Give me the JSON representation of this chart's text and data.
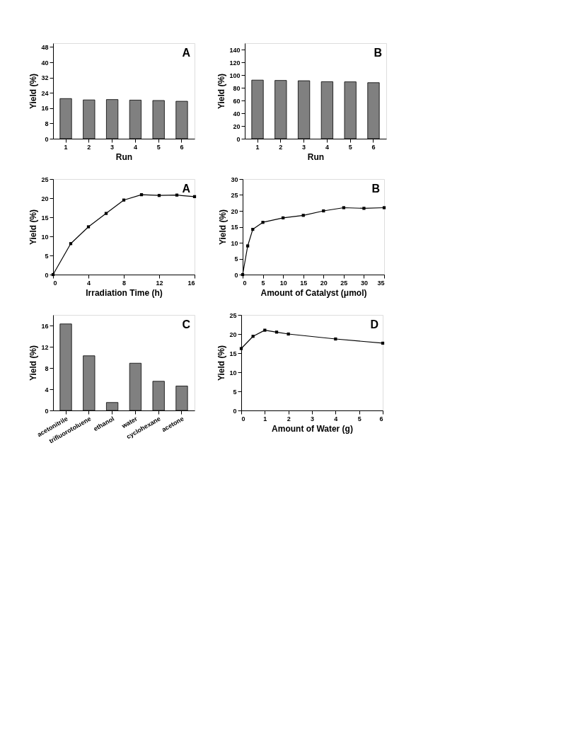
{
  "chart_data": [
    {
      "type": "bar",
      "categories": [
        "1",
        "2",
        "3",
        "4",
        "5",
        "6"
      ],
      "values": [
        21,
        20.3,
        20.5,
        20.2,
        20,
        19.6
      ],
      "color": "#808080",
      "xlabel": "Run",
      "ylabel": "Yield (%)",
      "ylim": [
        0,
        50
      ],
      "yticks": [
        0,
        8,
        16,
        24,
        32,
        40,
        48
      ],
      "grid": false,
      "annotations": [
        "A"
      ]
    },
    {
      "type": "bar",
      "categories": [
        "1",
        "2",
        "3",
        "4",
        "5",
        "6"
      ],
      "values": [
        92,
        91.5,
        91,
        89.5,
        89.3,
        88
      ],
      "color": "#808080",
      "xlabel": "Run",
      "ylabel": "Yield (%)",
      "ylim": [
        0,
        150
      ],
      "yticks": [
        0,
        20,
        40,
        60,
        80,
        100,
        120,
        140
      ],
      "grid": false,
      "annotations": [
        "B"
      ]
    },
    {
      "type": "line",
      "x": [
        0,
        2,
        4,
        6,
        8,
        10,
        12,
        14,
        16
      ],
      "values": [
        0,
        8.1,
        12.5,
        16,
        19.5,
        20.9,
        20.7,
        20.8,
        20.4
      ],
      "color": "#000000",
      "marker": "square",
      "xlabel": "Irradiation Time (h)",
      "ylabel": "Yield (%)",
      "xlim": [
        0,
        16
      ],
      "xticks": [
        0,
        4,
        8,
        12,
        16
      ],
      "ylim": [
        0,
        25
      ],
      "yticks": [
        0,
        5,
        10,
        15,
        20,
        25
      ],
      "grid": false,
      "annotations": [
        "A"
      ]
    },
    {
      "type": "line",
      "x": [
        0,
        1.25,
        2.5,
        5,
        10,
        15,
        20,
        25,
        30,
        35
      ],
      "values": [
        0,
        9,
        14.2,
        16.4,
        17.8,
        18.6,
        20,
        21,
        20.8,
        21
      ],
      "color": "#000000",
      "marker": "square",
      "xlabel": "Amount of Catalyst (μmol)",
      "ylabel": "Yield (%)",
      "xlim": [
        0,
        35
      ],
      "xticks": [
        0,
        5,
        10,
        15,
        20,
        25,
        30,
        35
      ],
      "ylim": [
        0,
        30
      ],
      "yticks": [
        0,
        5,
        10,
        15,
        20,
        25,
        30
      ],
      "grid": false,
      "annotations": [
        "B"
      ]
    },
    {
      "type": "bar",
      "categories": [
        "acetonitrile",
        "trifluorotoluene",
        "ethanol",
        "water",
        "cyclohexane",
        "acetone"
      ],
      "values": [
        16.3,
        10.3,
        1.5,
        8.9,
        5.5,
        4.6
      ],
      "color": "#808080",
      "ylabel": "Yield (%)",
      "ylim": [
        0,
        18
      ],
      "yticks": [
        0,
        4,
        8,
        12,
        16
      ],
      "grid": false,
      "annotations": [
        "C"
      ]
    },
    {
      "type": "line",
      "x": [
        0,
        0.5,
        1,
        1.5,
        2,
        4,
        6
      ],
      "values": [
        16.2,
        19.4,
        21,
        20.5,
        20,
        18.7,
        17.6
      ],
      "color": "#000000",
      "marker": "square",
      "xlabel": "Amount of Water (g)",
      "ylabel": "Yield (%)",
      "xlim": [
        0,
        6
      ],
      "xticks": [
        0,
        1,
        2,
        3,
        4,
        5,
        6
      ],
      "ylim": [
        0,
        25
      ],
      "yticks": [
        0,
        5,
        10,
        15,
        20,
        25
      ],
      "grid": false,
      "annotations": [
        "D"
      ]
    }
  ]
}
